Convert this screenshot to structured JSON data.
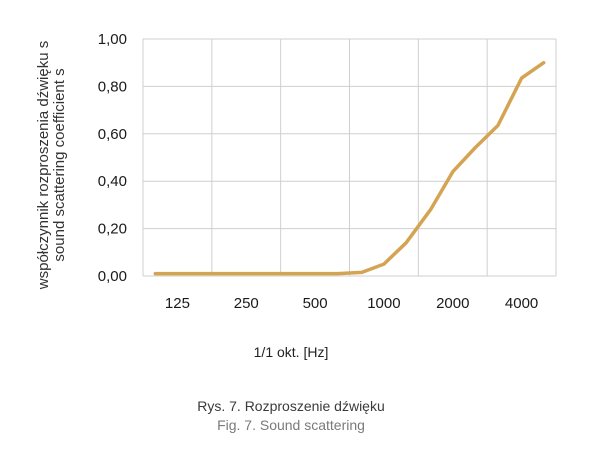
{
  "chart_data": {
    "type": "line",
    "title": "",
    "xlabel": "1/1 okt. [Hz]",
    "ylabel_lines": [
      "współczynnik rozproszenia dźwięku s",
      "sound scattering coefficient s"
    ],
    "x_tick_labels": [
      "125",
      "250",
      "500",
      "1000",
      "2000",
      "4000"
    ],
    "y_tick_labels": [
      "0,00",
      "0,20",
      "0,40",
      "0,60",
      "0,80",
      "1,00"
    ],
    "y_ticks": [
      0,
      0.2,
      0.4,
      0.6,
      0.8,
      1.0
    ],
    "ylim": [
      0,
      1.0
    ],
    "x_scale": "log2 (octave bands)",
    "grid": true,
    "series": [
      {
        "color": "#d4a452",
        "points": [
          {
            "x": 100,
            "y": 0.01
          },
          {
            "x": 125,
            "y": 0.01
          },
          {
            "x": 160,
            "y": 0.01
          },
          {
            "x": 200,
            "y": 0.01
          },
          {
            "x": 250,
            "y": 0.01
          },
          {
            "x": 315,
            "y": 0.01
          },
          {
            "x": 400,
            "y": 0.01
          },
          {
            "x": 500,
            "y": 0.01
          },
          {
            "x": 630,
            "y": 0.01
          },
          {
            "x": 800,
            "y": 0.015
          },
          {
            "x": 1000,
            "y": 0.05
          },
          {
            "x": 1250,
            "y": 0.14
          },
          {
            "x": 1600,
            "y": 0.28
          },
          {
            "x": 2000,
            "y": 0.44
          },
          {
            "x": 2500,
            "y": 0.54
          },
          {
            "x": 3150,
            "y": 0.635
          },
          {
            "x": 4000,
            "y": 0.835
          },
          {
            "x": 5000,
            "y": 0.9
          }
        ]
      }
    ]
  },
  "caption": {
    "line1": "Rys. 7. Rozproszenie dźwięku",
    "line2": "Fig. 7. Sound scattering"
  }
}
